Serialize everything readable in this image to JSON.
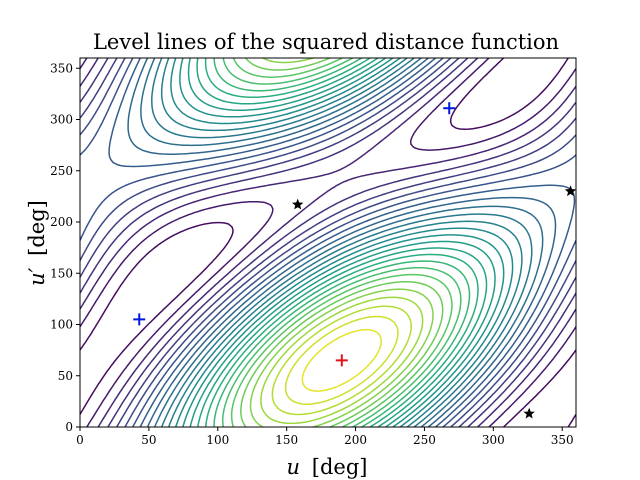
{
  "chart_data": {
    "type": "contour",
    "title": "Level lines of the squared distance function",
    "xlabel_var": "u",
    "ylabel_var": "u′",
    "xlabel_unit": "[deg]",
    "ylabel_unit": "[deg]",
    "xlim": [
      0,
      360
    ],
    "ylim": [
      0,
      360
    ],
    "xticks": [
      0,
      50,
      100,
      150,
      200,
      250,
      300,
      350
    ],
    "yticks": [
      0,
      50,
      100,
      150,
      200,
      250,
      300,
      350
    ],
    "grid": false,
    "colormap": [
      "#440154",
      "#472c7a",
      "#3b518b",
      "#2c718e",
      "#21908d",
      "#27ad81",
      "#5cc863",
      "#aadc32",
      "#fde725"
    ],
    "field": {
      "level_count": 26,
      "minimum_center": [
        190,
        65
      ],
      "major_axis_angle_deg": 40
    },
    "markers": [
      {
        "kind": "minimum",
        "shape": "plus",
        "color": "#e0141e",
        "x": 190,
        "y": 65
      },
      {
        "kind": "saddle_plus",
        "shape": "plus",
        "color": "#0018e0",
        "x": 43,
        "y": 105
      },
      {
        "kind": "saddle_plus",
        "shape": "plus",
        "color": "#0018e0",
        "x": 268,
        "y": 311
      },
      {
        "kind": "star",
        "shape": "star",
        "color": "#000000",
        "x": 158,
        "y": 217
      },
      {
        "kind": "star",
        "shape": "star",
        "color": "#000000",
        "x": 356,
        "y": 230
      },
      {
        "kind": "star",
        "shape": "star",
        "color": "#000000",
        "x": 326,
        "y": 13
      }
    ]
  }
}
